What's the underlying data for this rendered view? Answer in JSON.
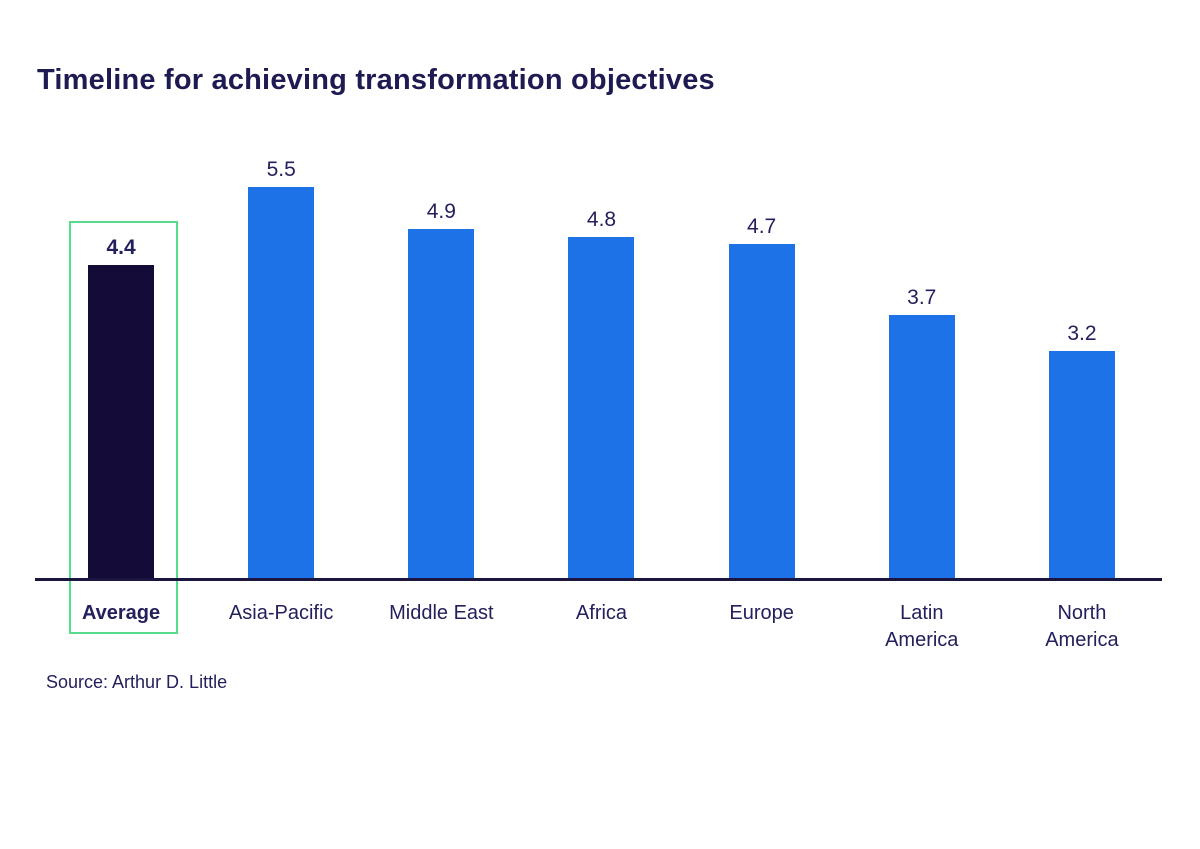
{
  "title": "Timeline for achieving transformation objectives",
  "source": "Source: Arthur D. Little",
  "colors": {
    "bar_blue": "#1D72E8",
    "bar_highlight_navy": "#140B38",
    "highlight_box_green": "#57DB8C",
    "text_navy": "#23205C",
    "axis_navy": "#1B1640",
    "background": "#FFFFFF"
  },
  "chart_data": {
    "type": "bar",
    "title": "Timeline for achieving transformation objectives",
    "categories": [
      "Average",
      "Asia-Pacific",
      "Middle East",
      "Africa",
      "Europe",
      "Latin\nAmerica",
      "North\nAmerica"
    ],
    "values": [
      4.4,
      5.5,
      4.9,
      4.8,
      4.7,
      3.7,
      3.2
    ],
    "value_labels": [
      "4.4",
      "5.5",
      "4.9",
      "4.8",
      "4.7",
      "3.7",
      "3.2"
    ],
    "xlabel": "",
    "ylabel": "",
    "ylim": [
      0,
      6.15
    ],
    "highlight_index": 0,
    "grid": false,
    "legend": false,
    "value_labels_shown": true,
    "source": "Source: Arthur D. Little"
  }
}
